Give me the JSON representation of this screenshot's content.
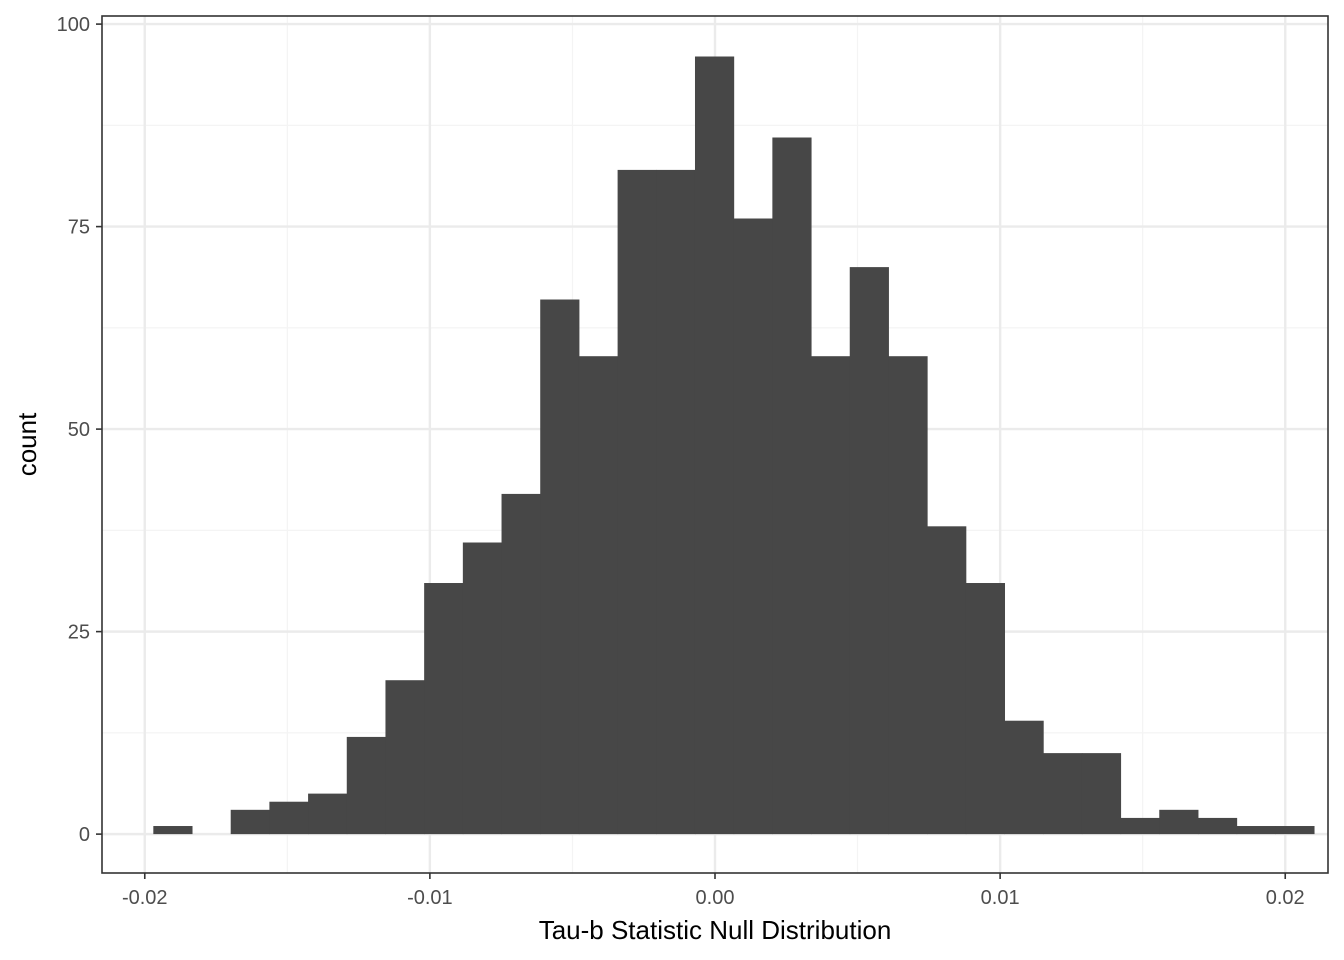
{
  "chart_data": {
    "type": "bar",
    "title": "",
    "xlabel": "Tau-b Statistic Null Distribution",
    "ylabel": "count",
    "xlim": [
      -0.0215,
      0.0215
    ],
    "ylim": [
      -4.8,
      101
    ],
    "xticks": [
      {
        "value": -0.02,
        "label": "-0.02"
      },
      {
        "value": -0.01,
        "label": "-0.01"
      },
      {
        "value": 0.0,
        "label": "0.00"
      },
      {
        "value": 0.01,
        "label": "0.01"
      },
      {
        "value": 0.02,
        "label": "0.02"
      }
    ],
    "yticks": [
      {
        "value": 0,
        "label": "0"
      },
      {
        "value": 25,
        "label": "25"
      },
      {
        "value": 50,
        "label": "50"
      },
      {
        "value": 75,
        "label": "75"
      },
      {
        "value": 100,
        "label": "100"
      }
    ],
    "x_minor_gridlines": [
      -0.015,
      -0.005,
      0.005,
      0.015
    ],
    "y_minor_gridlines": [
      12.5,
      37.5,
      62.5,
      87.5
    ],
    "grid": true,
    "bin_start": -0.0197,
    "bin_width": 0.001357,
    "counts": [
      1,
      0,
      3,
      4,
      5,
      12,
      19,
      31,
      36,
      42,
      66,
      59,
      82,
      82,
      96,
      76,
      86,
      59,
      70,
      59,
      38,
      31,
      14,
      10,
      10,
      2,
      3,
      2,
      1,
      1
    ],
    "colors": {
      "bar": "#474747",
      "panel_border": "#333333",
      "grid_major": "#ebebeb",
      "grid_minor": "#f4f4f4",
      "tick": "#333333",
      "tick_label": "#4d4d4d"
    }
  }
}
